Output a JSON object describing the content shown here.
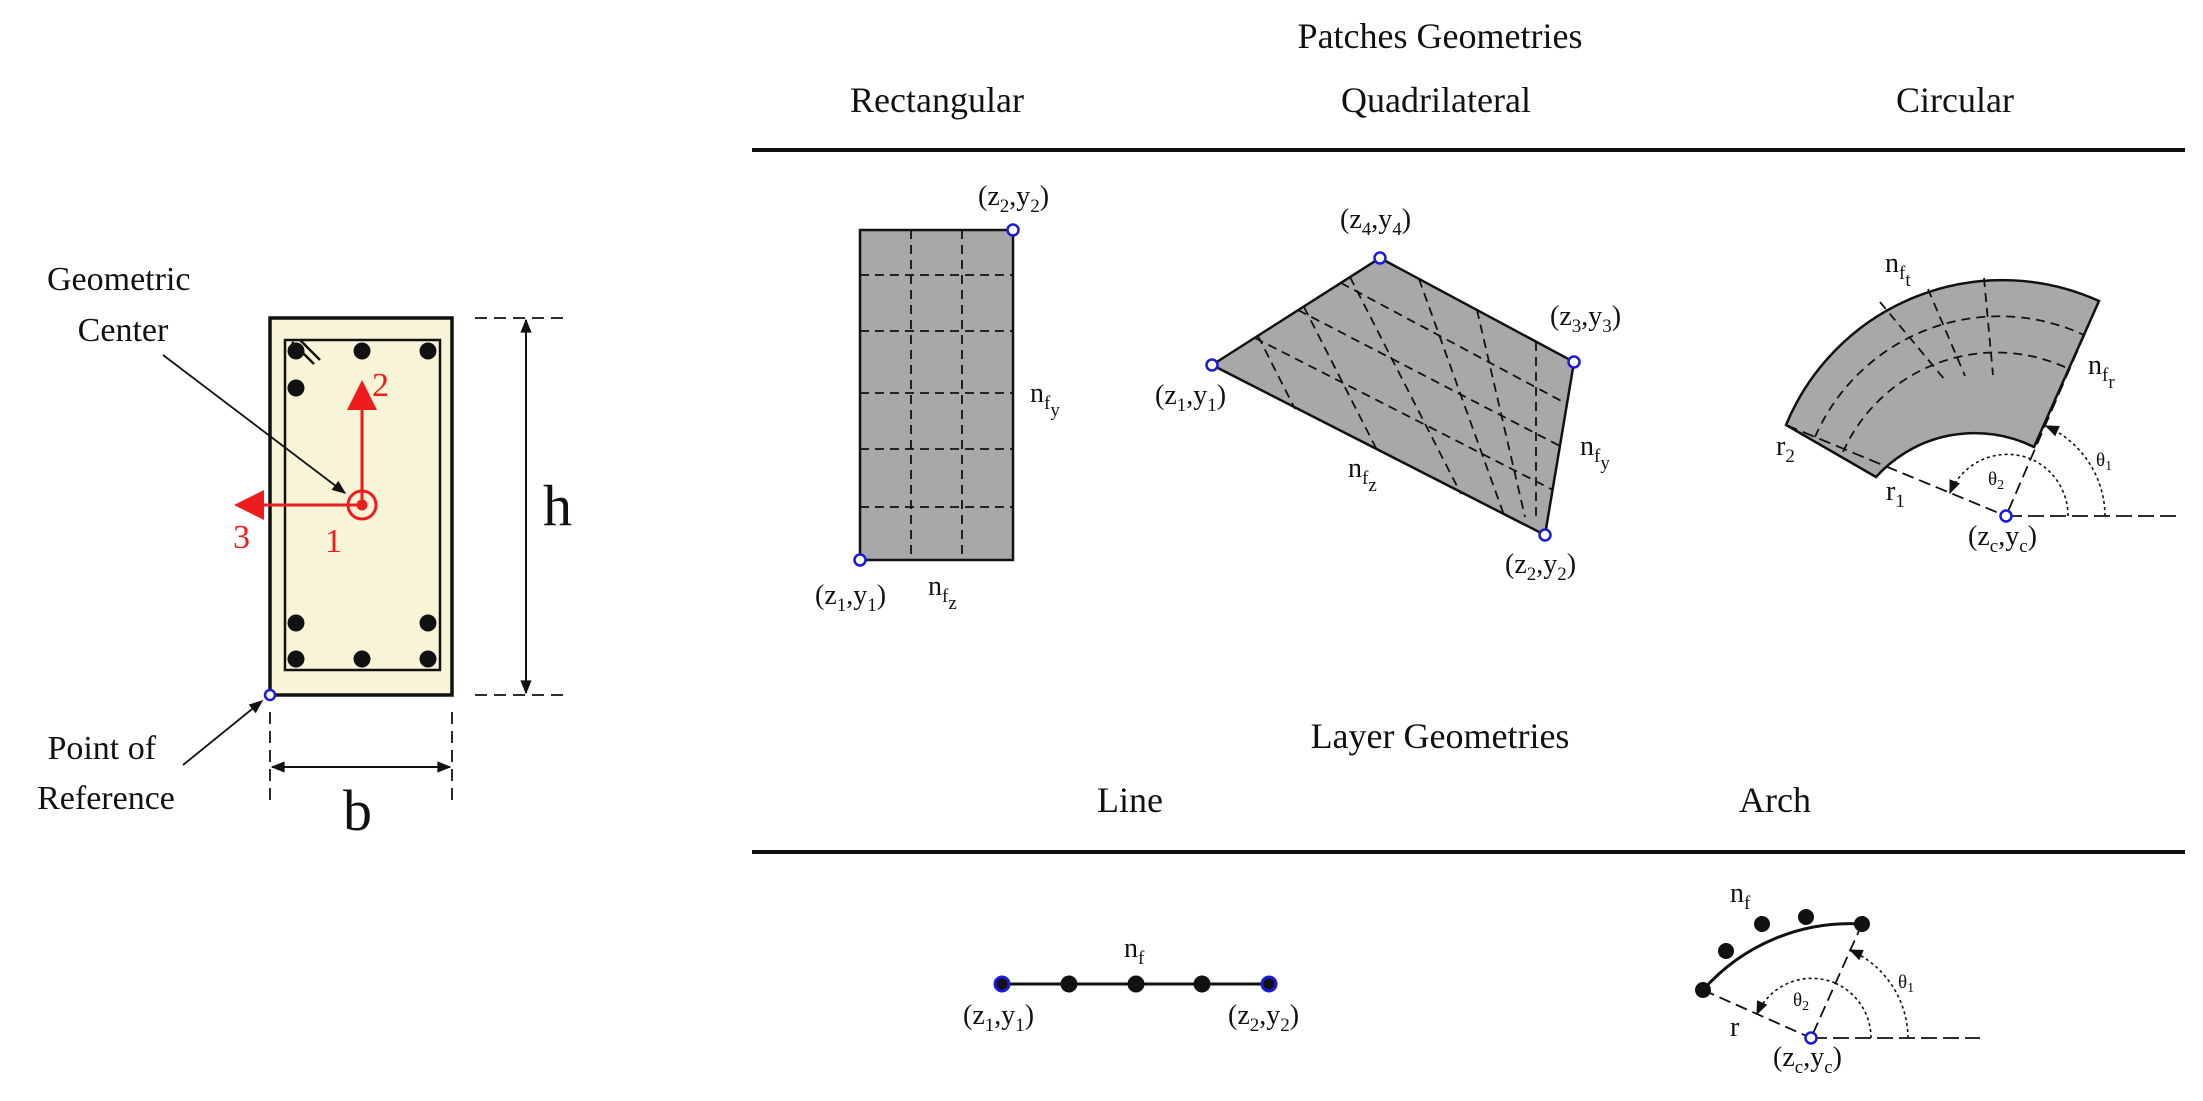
{
  "section": {
    "labels": {
      "geometric_center": [
        "Geometric",
        "Center"
      ],
      "point_of_reference": [
        "Point of",
        "Reference"
      ],
      "axis_1": "1",
      "axis_2": "2",
      "axis_3": "3",
      "h": "h",
      "b": "b"
    },
    "colors": {
      "fill": "#f8f4d8",
      "axes": "#ee1c1c",
      "point": "#1a1ad8"
    }
  },
  "patches": {
    "title": "Patches Geometries",
    "columns": [
      "Rectangular",
      "Quadrilateral",
      "Circular"
    ],
    "colors": {
      "patch_fill": "#a8a8a8"
    },
    "rectangular": {
      "c1": {
        "a": "(z",
        "s1": "1",
        "m": ",y",
        "s2": "1",
        "e": ")"
      },
      "c2": {
        "a": "(z",
        "s1": "2",
        "m": ",y",
        "s2": "2",
        "e": ")"
      },
      "nfy": {
        "n": "n",
        "f": "f",
        "s": "y"
      },
      "nfz": {
        "n": "n",
        "f": "f",
        "s": "z"
      }
    },
    "quadrilateral": {
      "c1": {
        "a": "(z",
        "s1": "1",
        "m": ",y",
        "s2": "1",
        "e": ")"
      },
      "c2": {
        "a": "(z",
        "s1": "2",
        "m": ",y",
        "s2": "2",
        "e": ")"
      },
      "c3": {
        "a": "(z",
        "s1": "3",
        "m": ",y",
        "s2": "3",
        "e": ")"
      },
      "c4": {
        "a": "(z",
        "s1": "4",
        "m": ",y",
        "s2": "4",
        "e": ")"
      },
      "nfy": {
        "n": "n",
        "f": "f",
        "s": "y"
      },
      "nfz": {
        "n": "n",
        "f": "f",
        "s": "z"
      }
    },
    "circular": {
      "nft": {
        "n": "n",
        "f": "f",
        "s": "t"
      },
      "nfr": {
        "n": "n",
        "f": "f",
        "s": "r"
      },
      "r1": {
        "a": "r",
        "s": "1"
      },
      "r2": {
        "a": "r",
        "s": "2"
      },
      "theta1": {
        "a": "θ",
        "s": "1"
      },
      "theta2": {
        "a": "θ",
        "s": "2"
      },
      "cc": {
        "a": "(z",
        "s1": "c",
        "m": ",y",
        "s2": "c",
        "e": ")"
      }
    }
  },
  "layers": {
    "title": "Layer Geometries",
    "columns": [
      "Line",
      "Arch"
    ],
    "line": {
      "c1": {
        "a": "(z",
        "s1": "1",
        "m": ",y",
        "s2": "1",
        "e": ")"
      },
      "c2": {
        "a": "(z",
        "s1": "2",
        "m": ",y",
        "s2": "2",
        "e": ")"
      },
      "nf": {
        "n": "n",
        "s": "f"
      }
    },
    "arch": {
      "nf": {
        "n": "n",
        "s": "f"
      },
      "r": "r",
      "theta1": {
        "a": "θ",
        "s": "1"
      },
      "theta2": {
        "a": "θ",
        "s": "2"
      },
      "cc": {
        "a": "(z",
        "s1": "c",
        "m": ",y",
        "s2": "c",
        "e": ")"
      }
    }
  }
}
